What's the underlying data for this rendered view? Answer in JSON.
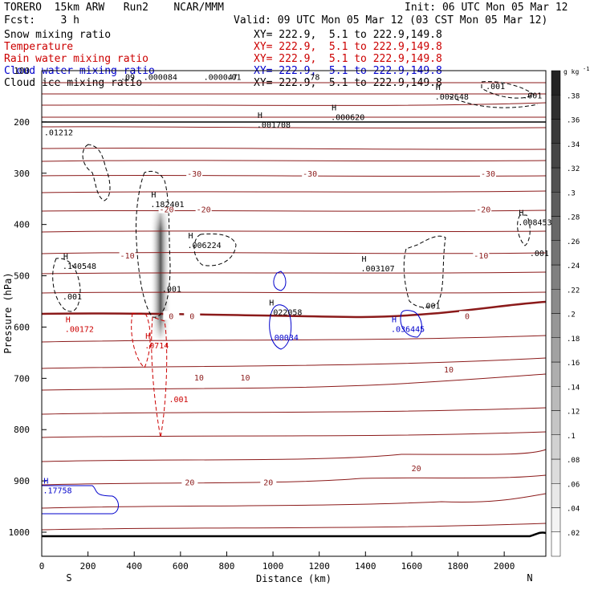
{
  "header": {
    "title_left": "TORERO  15km ARW   Run2    NCAR/MMM",
    "init": "Init: 06 UTC Mon 05 Mar 12",
    "fcst": "Fcst:    3 h",
    "valid": "Valid: 09 UTC Mon 05 Mar 12 (03 CST Mon 05 Mar 12)"
  },
  "legend": [
    {
      "label": "Snow mixing ratio",
      "color": "#000000",
      "xy": "XY= 222.9,  5.1 to 222.9,149.8"
    },
    {
      "label": "Temperature",
      "color": "#cc0000",
      "xy": "XY= 222.9,  5.1 to 222.9,149.8"
    },
    {
      "label": "Rain water mixing ratio",
      "color": "#cc0000",
      "xy": "XY= 222.9,  5.1 to 222.9,149.8"
    },
    {
      "label": "Cloud water mixing ratio",
      "color": "#0000cc",
      "xy": "XY= 222.9,  5.1 to 222.9,149.8"
    },
    {
      "label": "Cloud ice mixing ratio",
      "color": "#000000",
      "xy": "XY= 222.9,  5.1 to 222.9,149.8"
    }
  ],
  "chart_data": {
    "type": "cross-section contour",
    "xlabel": "Distance (km)",
    "ylabel": "Pressure (hPa)",
    "xlim": [
      0,
      2180
    ],
    "x_ticks": [
      "0",
      "200",
      "400",
      "600",
      "800",
      "1000",
      "1200",
      "1400",
      "1600",
      "1800",
      "2000"
    ],
    "ylim_hpa": [
      1050,
      100
    ],
    "y_ticks": [
      "100",
      "200",
      "300",
      "400",
      "500",
      "600",
      "700",
      "800",
      "900",
      "1000"
    ],
    "end_labels": {
      "left": "S",
      "right": "N"
    },
    "colorbar": {
      "units": "g kg",
      "units_exp": "-1",
      "ticks": [
        ".02",
        ".04",
        ".06",
        ".08",
        ".1",
        ".12",
        ".14",
        ".16",
        ".18",
        ".2",
        ".22",
        ".24",
        ".26",
        ".28",
        ".3",
        ".32",
        ".34",
        ".36",
        ".38"
      ],
      "min": 0,
      "max": 0.4
    },
    "temperature_isotherm_labels": [
      {
        "text": "-30",
        "x": 660,
        "p": 300
      },
      {
        "text": "-30",
        "x": 1160,
        "p": 300
      },
      {
        "text": "-30",
        "x": 1930,
        "p": 300
      },
      {
        "text": "-20",
        "x": 540,
        "p": 370
      },
      {
        "text": "-20",
        "x": 700,
        "p": 370
      },
      {
        "text": "-20",
        "x": 1910,
        "p": 370
      },
      {
        "text": "-10",
        "x": 370,
        "p": 460
      },
      {
        "text": "-10",
        "x": 1900,
        "p": 460
      },
      {
        "text": "0",
        "x": 560,
        "p": 578
      },
      {
        "text": "0",
        "x": 650,
        "p": 578
      },
      {
        "text": "0",
        "x": 1840,
        "p": 578
      },
      {
        "text": "10",
        "x": 680,
        "p": 698
      },
      {
        "text": "10",
        "x": 880,
        "p": 698
      },
      {
        "text": "10",
        "x": 1760,
        "p": 682
      },
      {
        "text": "20",
        "x": 640,
        "p": 902
      },
      {
        "text": "20",
        "x": 980,
        "p": 902
      },
      {
        "text": "20",
        "x": 1620,
        "p": 875
      }
    ],
    "maxima_labels": [
      {
        "h": "H",
        "value": ".001708",
        "x": 930,
        "p": 205,
        "color": "#000000"
      },
      {
        "h": "H",
        "value": ".000620",
        "x": 1250,
        "p": 190,
        "color": "#000000"
      },
      {
        "h": "H",
        "value": ".002648",
        "x": 1700,
        "p": 150,
        "color": "#000000"
      },
      {
        "h": "",
        "value": ".01212",
        "x": 10,
        "p": 220,
        "color": "#000000"
      },
      {
        "h": "H",
        "value": ".182401",
        "x": 470,
        "p": 360,
        "color": "#000000"
      },
      {
        "h": "H",
        "value": ".006224",
        "x": 630,
        "p": 440,
        "color": "#000000"
      },
      {
        "h": "H",
        "value": ".140548",
        "x": 90,
        "p": 480,
        "color": "#000000"
      },
      {
        "h": "H",
        "value": ".003107",
        "x": 1380,
        "p": 485,
        "color": "#000000"
      },
      {
        "h": "H",
        "value": ".008453",
        "x": 2060,
        "p": 395,
        "color": "#000000"
      },
      {
        "h": "H",
        "value": ".022058",
        "x": 980,
        "p": 570,
        "color": "#000000"
      },
      {
        "h": "H",
        "value": ".00172",
        "x": 100,
        "p": 603,
        "color": "#cc0000"
      },
      {
        "h": "H",
        "value": ".0714",
        "x": 445,
        "p": 635,
        "color": "#cc0000"
      },
      {
        "h": "",
        "value": ".00034",
        "x": 985,
        "p": 620,
        "color": "#0000cc"
      },
      {
        "h": "H",
        "value": ".036445",
        "x": 1510,
        "p": 603,
        "color": "#0000cc"
      },
      {
        "h": "H",
        "value": ".17758",
        "x": 5,
        "p": 918,
        "color": "#0000cc"
      }
    ],
    "contour_value_labels": [
      {
        "text": ".001",
        "x": 90,
        "p": 540,
        "color": "#000000"
      },
      {
        "text": ".001",
        "x": 520,
        "p": 525,
        "color": "#000000"
      },
      {
        "text": ".001",
        "x": 1640,
        "p": 558,
        "color": "#000000"
      },
      {
        "text": ".001",
        "x": 1920,
        "p": 130,
        "color": "#000000"
      },
      {
        "text": ".001",
        "x": 2080,
        "p": 148,
        "color": "#000000"
      },
      {
        "text": ".001",
        "x": 550,
        "p": 740,
        "color": "#cc0000"
      },
      {
        "text": ".001",
        "x": 2110,
        "p": 455,
        "color": "#000000"
      },
      {
        "text": ".09",
        "x": 340,
        "p": 112,
        "color": "#000000"
      },
      {
        "text": ".000084",
        "x": 440,
        "p": 112,
        "color": "#000000"
      },
      {
        "text": ".000047",
        "x": 700,
        "p": 112,
        "color": "#000000"
      },
      {
        "text": ".01",
        "x": 800,
        "p": 112,
        "color": "#000000"
      },
      {
        "text": ".78",
        "x": 1140,
        "p": 112,
        "color": "#000000"
      }
    ]
  }
}
